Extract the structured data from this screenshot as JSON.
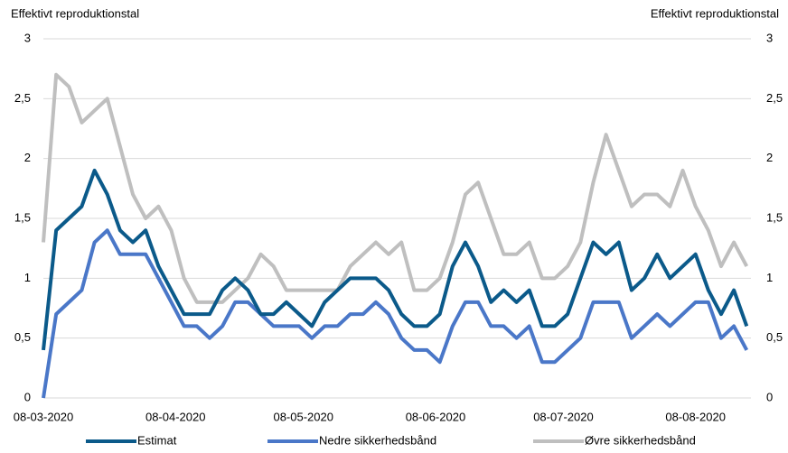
{
  "chart_data": {
    "type": "line",
    "y_label": "Effektivt reproduktionstal",
    "y2_label": "Effektivt reproduktionstal",
    "x": [
      "08-03-2020",
      "11-03-2020",
      "14-03-2020",
      "17-03-2020",
      "20-03-2020",
      "23-03-2020",
      "26-03-2020",
      "29-03-2020",
      "01-04-2020",
      "04-04-2020",
      "07-04-2020",
      "10-04-2020",
      "13-04-2020",
      "16-04-2020",
      "19-04-2020",
      "22-04-2020",
      "25-04-2020",
      "28-04-2020",
      "01-05-2020",
      "04-05-2020",
      "07-05-2020",
      "10-05-2020",
      "13-05-2020",
      "16-05-2020",
      "19-05-2020",
      "22-05-2020",
      "25-05-2020",
      "28-05-2020",
      "31-05-2020",
      "03-06-2020",
      "06-06-2020",
      "09-06-2020",
      "12-06-2020",
      "15-06-2020",
      "18-06-2020",
      "21-06-2020",
      "24-06-2020",
      "27-06-2020",
      "30-06-2020",
      "03-07-2020",
      "06-07-2020",
      "09-07-2020",
      "12-07-2020",
      "15-07-2020",
      "18-07-2020",
      "21-07-2020",
      "24-07-2020",
      "27-07-2020",
      "30-07-2020",
      "02-08-2020",
      "05-08-2020",
      "08-08-2020",
      "11-08-2020",
      "14-08-2020",
      "17-08-2020",
      "20-08-2020"
    ],
    "series": [
      {
        "name": "Estimat",
        "color": "#0b5a8a",
        "values": [
          0.4,
          1.4,
          1.5,
          1.6,
          1.9,
          1.7,
          1.4,
          1.3,
          1.4,
          1.1,
          0.9,
          0.7,
          0.7,
          0.7,
          0.9,
          1.0,
          0.9,
          0.7,
          0.7,
          0.8,
          0.7,
          0.6,
          0.8,
          0.9,
          1.0,
          1.0,
          1.0,
          0.9,
          0.7,
          0.6,
          0.6,
          0.7,
          1.1,
          1.3,
          1.1,
          0.8,
          0.9,
          0.8,
          0.9,
          0.6,
          0.6,
          0.7,
          1.0,
          1.3,
          1.2,
          1.3,
          0.9,
          1.0,
          1.2,
          1.0,
          1.1,
          1.2,
          0.9,
          0.7,
          0.9,
          0.6
        ]
      },
      {
        "name": "Nedre sikkerhedsbånd",
        "color": "#4a77c8",
        "values": [
          0.0,
          0.7,
          0.8,
          0.9,
          1.3,
          1.4,
          1.2,
          1.2,
          1.2,
          1.0,
          0.8,
          0.6,
          0.6,
          0.5,
          0.6,
          0.8,
          0.8,
          0.7,
          0.6,
          0.6,
          0.6,
          0.5,
          0.6,
          0.6,
          0.7,
          0.7,
          0.8,
          0.7,
          0.5,
          0.4,
          0.4,
          0.3,
          0.6,
          0.8,
          0.8,
          0.6,
          0.6,
          0.5,
          0.6,
          0.3,
          0.3,
          0.4,
          0.5,
          0.8,
          0.8,
          0.8,
          0.5,
          0.6,
          0.7,
          0.6,
          0.7,
          0.8,
          0.8,
          0.5,
          0.6,
          0.4
        ]
      },
      {
        "name": "Øvre sikkerhedsbånd",
        "color": "#bfbfbf",
        "values": [
          1.3,
          2.7,
          2.6,
          2.3,
          2.4,
          2.5,
          2.1,
          1.7,
          1.5,
          1.6,
          1.4,
          1.0,
          0.8,
          0.8,
          0.8,
          0.9,
          1.0,
          1.2,
          1.1,
          0.9,
          0.9,
          0.9,
          0.9,
          0.9,
          1.1,
          1.2,
          1.3,
          1.2,
          1.3,
          0.9,
          0.9,
          1.0,
          1.3,
          1.7,
          1.8,
          1.5,
          1.2,
          1.2,
          1.3,
          1.0,
          1.0,
          1.1,
          1.3,
          1.8,
          2.2,
          1.9,
          1.6,
          1.7,
          1.7,
          1.6,
          1.9,
          1.6,
          1.4,
          1.1,
          1.3,
          1.1
        ]
      }
    ],
    "xlim": [
      "08-03-2020",
      "21-08-2020"
    ],
    "xticks": [
      "08-03-2020",
      "08-04-2020",
      "08-05-2020",
      "08-06-2020",
      "08-07-2020",
      "08-08-2020"
    ],
    "ylim": [
      0,
      3
    ],
    "yticks": [
      0,
      {
        "value": 0.5,
        "label": "0,5"
      },
      1,
      {
        "value": 1.5,
        "label": "1,5"
      },
      2,
      {
        "value": 2.5,
        "label": "2,5"
      },
      3
    ],
    "y2lim": [
      0,
      3
    ],
    "y2ticks": [
      0,
      {
        "value": 0.5,
        "label": "0,5"
      },
      1,
      {
        "value": 1.5,
        "label": "1,5"
      },
      2,
      {
        "value": 2.5,
        "label": "2,5"
      },
      3
    ],
    "grid": true,
    "legend": "bottom"
  }
}
